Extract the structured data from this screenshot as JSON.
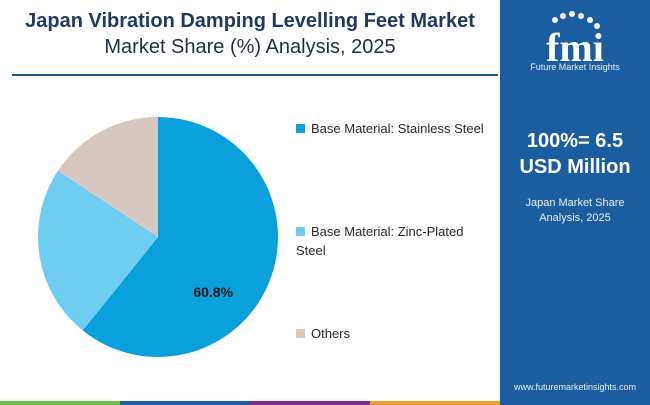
{
  "header": {
    "title": "Japan Vibration Damping Levelling Feet Market",
    "subtitle": "Market Share (%) Analysis, 2025"
  },
  "chart_data": {
    "type": "pie",
    "slices": [
      {
        "label": "Base Material: Stainless Steel",
        "value": 60.8,
        "display": "60.8%",
        "color": "#0aa0dc"
      },
      {
        "label": "Base Material: Zinc-Plated Steel",
        "value": 23.5,
        "display": "",
        "color": "#6fcdf2"
      },
      {
        "label": "Others",
        "value": 15.7,
        "display": "",
        "color": "#d4c8c1"
      }
    ],
    "legend_position": "right",
    "start_angle_deg": 0,
    "direction": "clockwise"
  },
  "legend": {
    "item1": "Base Material: Stainless Steel",
    "item2_line1": "Base Material: Zinc-Plated",
    "item2_line2": "Steel",
    "item3": "Others"
  },
  "panel": {
    "logo_letters": "fmi",
    "logo_caption": "Future Market Insights",
    "big_line1": "100%= 6.5",
    "big_line2": "USD Million",
    "small_line1": "Japan Market Share",
    "small_line2": "Analysis, 2025",
    "url": "www.futuremarketinsights.com",
    "bg_color": "#1a5ea0"
  }
}
